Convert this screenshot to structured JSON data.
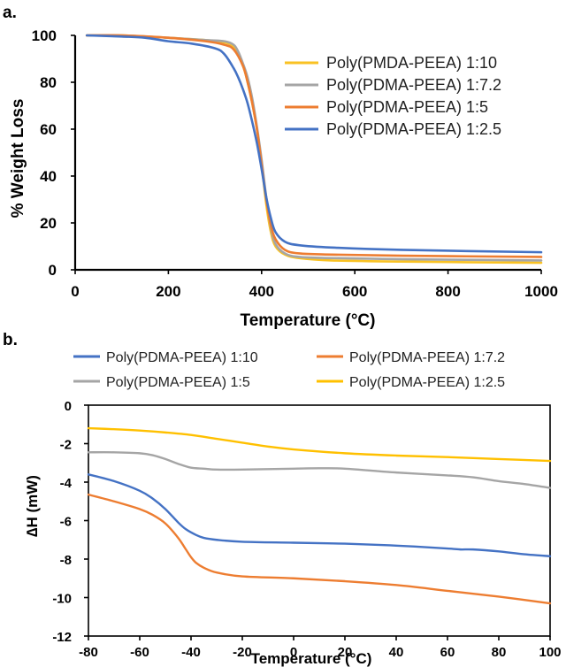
{
  "chart_data": [
    {
      "panel": "a.",
      "type": "line",
      "xlabel": "Temperature (°C)",
      "ylabel": "% Weight Loss",
      "xlim": [
        0,
        1000
      ],
      "ylim": [
        0,
        100
      ],
      "xticks": [
        0,
        200,
        400,
        600,
        800,
        1000
      ],
      "yticks": [
        0,
        20,
        40,
        60,
        80,
        100
      ],
      "grid": false,
      "legend_position": "top-right",
      "series": [
        {
          "name": "Poly(PMDA-PEEA) 1:10",
          "color": "#f9c223",
          "x": [
            25,
            100,
            200,
            280,
            320,
            340,
            360,
            370,
            380,
            390,
            400,
            410,
            420,
            430,
            450,
            480,
            550,
            700,
            1000
          ],
          "y": [
            100,
            100,
            99,
            98,
            97,
            95,
            87,
            80,
            71,
            60,
            45,
            28,
            16,
            10,
            6.5,
            5,
            4,
            3.5,
            3
          ]
        },
        {
          "name": "Poly(PDMA-PEEA) 1:7.2",
          "color": "#a5a5a5",
          "x": [
            25,
            100,
            200,
            280,
            320,
            340,
            350,
            360,
            370,
            380,
            390,
            400,
            410,
            420,
            430,
            450,
            480,
            550,
            700,
            1000
          ],
          "y": [
            100,
            100,
            99,
            98,
            97.5,
            96,
            93,
            88,
            82,
            73,
            61,
            47,
            31,
            18,
            11,
            7,
            5.5,
            5,
            4.5,
            4
          ]
        },
        {
          "name": "Poly(PDMA-PEEA) 1:5",
          "color": "#ed7d31",
          "x": [
            25,
            100,
            200,
            280,
            320,
            340,
            360,
            370,
            380,
            390,
            400,
            410,
            420,
            430,
            450,
            480,
            550,
            700,
            1000
          ],
          "y": [
            100,
            100,
            99,
            97.5,
            96,
            94,
            87,
            80,
            71,
            60,
            45,
            30,
            19,
            13,
            8.5,
            7,
            6.5,
            6,
            5.5
          ]
        },
        {
          "name": "Poly(PDMA-PEEA) 1:2.5",
          "color": "#4472c4",
          "x": [
            25,
            100,
            150,
            200,
            250,
            300,
            320,
            340,
            350,
            360,
            370,
            380,
            390,
            400,
            410,
            420,
            430,
            450,
            480,
            550,
            700,
            1000
          ],
          "y": [
            100,
            99.5,
            99,
            97.5,
            96.5,
            94.5,
            92,
            86,
            82,
            77,
            71,
            63,
            54,
            43,
            31,
            22,
            16,
            12,
            10.5,
            9.5,
            8.5,
            7.5
          ]
        }
      ]
    },
    {
      "panel": "b.",
      "type": "line",
      "xlabel": "Temperature (°C)",
      "ylabel": "∆H (mW)",
      "xlim": [
        -80,
        100
      ],
      "ylim": [
        -12,
        0
      ],
      "xticks": [
        -80,
        -60,
        -40,
        -20,
        0,
        20,
        40,
        60,
        80,
        100
      ],
      "yticks": [
        0,
        -2,
        -4,
        -6,
        -8,
        -10,
        -12
      ],
      "grid": false,
      "legend_position": "top",
      "series": [
        {
          "name": "Poly(PDMA-PEEA) 1:10",
          "color": "#4472c4",
          "x": [
            -80,
            -70,
            -60,
            -55,
            -50,
            -45,
            -42,
            -38,
            -35,
            -30,
            -20,
            0,
            20,
            40,
            60,
            65,
            70,
            80,
            90,
            100
          ],
          "y": [
            -3.6,
            -3.95,
            -4.45,
            -4.85,
            -5.4,
            -6.1,
            -6.45,
            -6.75,
            -6.9,
            -7.0,
            -7.1,
            -7.15,
            -7.2,
            -7.3,
            -7.45,
            -7.5,
            -7.5,
            -7.6,
            -7.75,
            -7.85
          ]
        },
        {
          "name": "Poly(PDMA-PEEA) 1:7.2",
          "color": "#ed7d31",
          "x": [
            -80,
            -70,
            -60,
            -55,
            -50,
            -45,
            -42,
            -40,
            -38,
            -35,
            -30,
            -20,
            0,
            20,
            40,
            60,
            80,
            100
          ],
          "y": [
            -4.65,
            -5.0,
            -5.4,
            -5.7,
            -6.15,
            -6.9,
            -7.5,
            -7.9,
            -8.2,
            -8.45,
            -8.7,
            -8.9,
            -9.0,
            -9.15,
            -9.35,
            -9.65,
            -9.95,
            -10.3
          ]
        },
        {
          "name": "Poly(PDMA-PEEA) 1:5",
          "color": "#a5a5a5",
          "x": [
            -80,
            -70,
            -60,
            -55,
            -50,
            -45,
            -40,
            -35,
            -30,
            -20,
            0,
            10,
            20,
            40,
            60,
            70,
            80,
            90,
            100
          ],
          "y": [
            -2.45,
            -2.45,
            -2.5,
            -2.6,
            -2.8,
            -3.05,
            -3.25,
            -3.3,
            -3.35,
            -3.35,
            -3.3,
            -3.28,
            -3.3,
            -3.5,
            -3.65,
            -3.75,
            -3.95,
            -4.1,
            -4.3
          ]
        },
        {
          "name": "Poly(PDMA-PEEA) 1:2.5",
          "color": "#ffc000",
          "x": [
            -80,
            -70,
            -60,
            -50,
            -40,
            -30,
            -20,
            -10,
            0,
            20,
            40,
            60,
            80,
            100
          ],
          "y": [
            -1.2,
            -1.25,
            -1.32,
            -1.42,
            -1.55,
            -1.75,
            -1.95,
            -2.15,
            -2.3,
            -2.5,
            -2.62,
            -2.7,
            -2.8,
            -2.9
          ]
        }
      ]
    }
  ]
}
